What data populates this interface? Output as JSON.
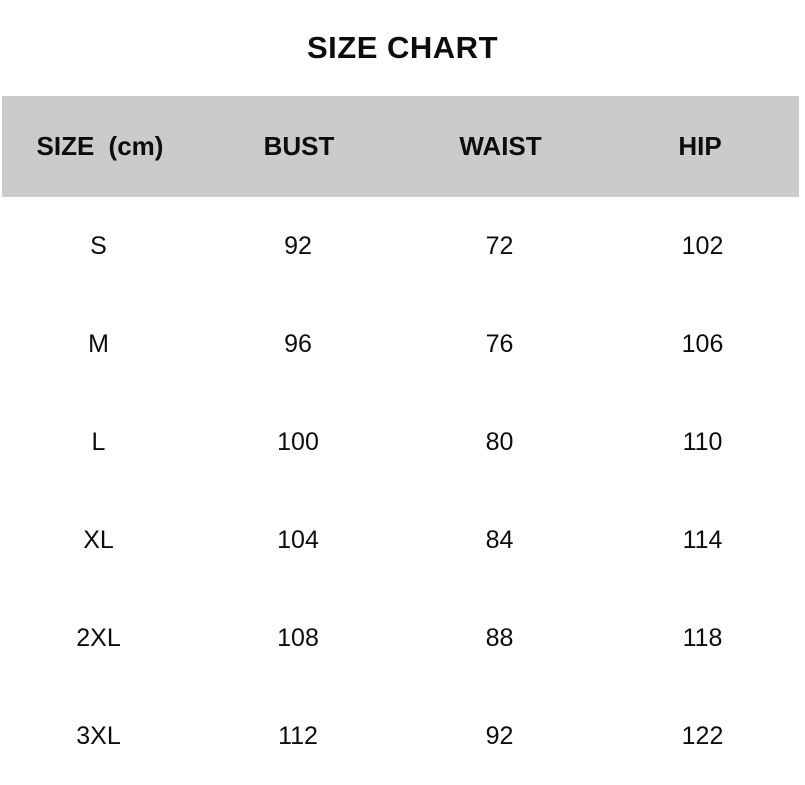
{
  "title": "SIZE CHART",
  "table": {
    "headers": [
      "SIZE (cm)",
      "BUST",
      "WAIST",
      "HIP"
    ],
    "rows": [
      {
        "size": "S",
        "bust": "92",
        "waist": "72",
        "hip": "102"
      },
      {
        "size": "M",
        "bust": "96",
        "waist": "76",
        "hip": "106"
      },
      {
        "size": "L",
        "bust": "100",
        "waist": "80",
        "hip": "110"
      },
      {
        "size": "XL",
        "bust": "104",
        "waist": "84",
        "hip": "114"
      },
      {
        "size": "2XL",
        "bust": "108",
        "waist": "88",
        "hip": "118"
      },
      {
        "size": "3XL",
        "bust": "112",
        "waist": "92",
        "hip": "122"
      }
    ]
  },
  "chart_data": {
    "type": "table",
    "title": "SIZE CHART",
    "unit": "cm",
    "columns": [
      "SIZE (cm)",
      "BUST",
      "WAIST",
      "HIP"
    ],
    "rows": [
      [
        "S",
        92,
        72,
        102
      ],
      [
        "M",
        96,
        76,
        106
      ],
      [
        "L",
        100,
        80,
        110
      ],
      [
        "XL",
        104,
        84,
        114
      ],
      [
        "2XL",
        108,
        88,
        118
      ],
      [
        "3XL",
        112,
        92,
        122
      ]
    ]
  },
  "colors": {
    "background": "#ffffff",
    "header_band": "#cbcbcb",
    "text": "#0d0d0d"
  }
}
